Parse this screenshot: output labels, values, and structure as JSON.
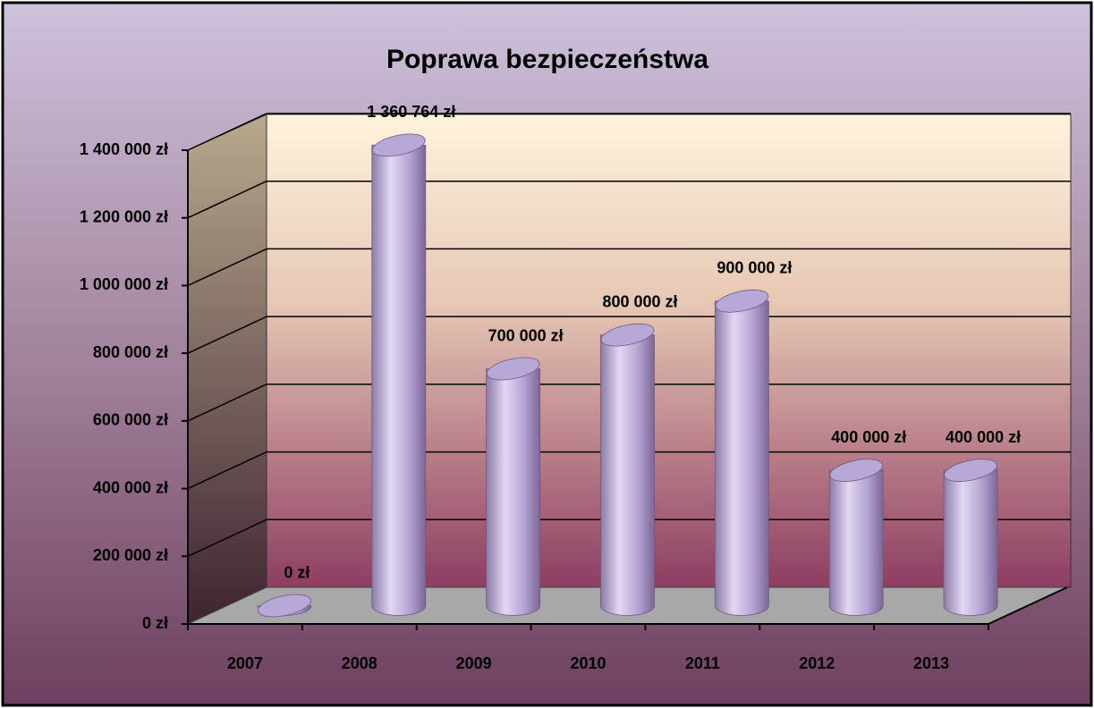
{
  "chart_data": {
    "type": "bar",
    "title": "Poprawa bezpieczeństwa",
    "categories": [
      "2007",
      "2008",
      "2009",
      "2010",
      "2011",
      "2012",
      "2013"
    ],
    "values": [
      0,
      1360764,
      700000,
      800000,
      900000,
      400000,
      400000
    ],
    "value_labels": [
      "0 zł",
      "1 360 764 zł",
      "700 000 zł",
      "800 000 zł",
      "900 000 zł",
      "400 000 zł",
      "400 000 zł"
    ],
    "color": "#b8a8d8",
    "ylim": [
      0,
      1400000
    ],
    "yticks": [
      {
        "value": 0,
        "label": "0 zł"
      },
      {
        "value": 200000,
        "label": "200 000 zł"
      },
      {
        "value": 400000,
        "label": "400 000 zł"
      },
      {
        "value": 600000,
        "label": "600 000 zł"
      },
      {
        "value": 800000,
        "label": "800 000 zł"
      },
      {
        "value": 1000000,
        "label": "1 000 000 zł"
      },
      {
        "value": 1200000,
        "label": "1 200 000 zł"
      },
      {
        "value": 1400000,
        "label": "1 400 000 zł"
      }
    ],
    "grid": true
  }
}
